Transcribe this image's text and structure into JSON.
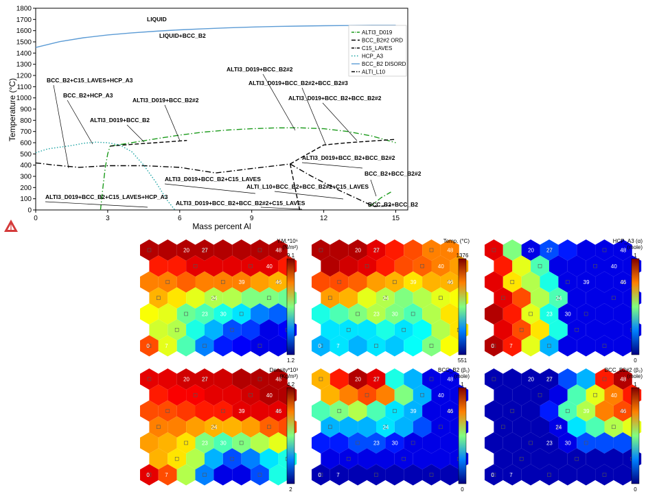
{
  "chart_data": [
    {
      "type": "line",
      "title": "",
      "xlabel": "Mass percent Al",
      "ylabel": "Temperature (°C)",
      "xlim": [
        0,
        15.5
      ],
      "ylim": [
        0,
        1800
      ],
      "x_ticks": [
        "0",
        "3",
        "6",
        "9",
        "12",
        "15"
      ],
      "y_ticks": [
        "0",
        "100",
        "200",
        "300",
        "400",
        "500",
        "600",
        "700",
        "800",
        "900",
        "1000",
        "1100",
        "1200",
        "1300",
        "1400",
        "1500",
        "1600",
        "1700",
        "1800"
      ],
      "legend_position": "top-right",
      "legend": [
        {
          "name": "ALTI3_D019",
          "color": "#1a9a1a",
          "dash": "long-dot"
        },
        {
          "name": "BCC_B2#2 ORD",
          "color": "#000000",
          "dash": "dashed"
        },
        {
          "name": "C15_LAVES",
          "color": "#000000",
          "dash": "long-dot"
        },
        {
          "name": "HCP_A3",
          "color": "#1aa3a3",
          "dash": "dotted"
        },
        {
          "name": "BCC_B2 DISORD",
          "color": "#5b9bd5",
          "dash": "solid"
        },
        {
          "name": "ALTI_L10",
          "color": "#000000",
          "dash": "dash-dot"
        }
      ],
      "series": [
        {
          "name": "BCC_B2 DISORD",
          "color": "#5b9bd5",
          "x": [
            0,
            1,
            2,
            3,
            4,
            5,
            6,
            7,
            8,
            9,
            10,
            11,
            12,
            13,
            14,
            15
          ],
          "y": [
            1450,
            1502,
            1537,
            1562,
            1580,
            1595,
            1607,
            1617,
            1625,
            1632,
            1637,
            1641,
            1644,
            1646,
            1648,
            1648
          ]
        },
        {
          "name": "ALTI3_D019",
          "color": "#1a9a1a",
          "x": [
            3.1,
            4,
            5,
            6,
            7,
            8,
            9,
            10,
            11,
            12,
            13,
            14,
            15
          ],
          "y": [
            570,
            600,
            635,
            668,
            695,
            713,
            725,
            732,
            733,
            725,
            700,
            660,
            600
          ]
        },
        {
          "name": "ALTI3_D019",
          "color": "#1a9a1a",
          "x": [
            2.7,
            2.8,
            2.9,
            3.0,
            3.1
          ],
          "y": [
            0,
            200,
            380,
            500,
            570
          ]
        },
        {
          "name": "ALTI3_D019",
          "color": "#1a9a1a",
          "x": [
            13.9,
            14.1,
            14.4,
            14.8
          ],
          "y": [
            30,
            60,
            110,
            160
          ]
        },
        {
          "name": "BCC_B2#2 ORD",
          "color": "#000000",
          "x": [
            3.1,
            4,
            5,
            6.3
          ],
          "y": [
            570,
            585,
            600,
            620
          ]
        },
        {
          "name": "BCC_B2#2 ORD",
          "color": "#000000",
          "x": [
            10.6,
            11,
            11.5,
            12,
            13,
            14,
            15
          ],
          "y": [
            410,
            460,
            520,
            580,
            600,
            615,
            630
          ]
        },
        {
          "name": "BCC_B2#2 ORD",
          "color": "#000000",
          "x": [
            10.6,
            10.8,
            11.0
          ],
          "y": [
            410,
            200,
            0
          ]
        },
        {
          "name": "C15_LAVES",
          "color": "#000000",
          "x": [
            0,
            0.8,
            1.8,
            3,
            4.5,
            6,
            7.5,
            9,
            10.6
          ],
          "y": [
            420,
            400,
            380,
            395,
            395,
            380,
            330,
            370,
            410
          ]
        },
        {
          "name": "C15_LAVES",
          "color": "#000000",
          "x": [
            10.6,
            11.5,
            12.5,
            13.5,
            14.1
          ],
          "y": [
            410,
            300,
            190,
            90,
            30
          ]
        },
        {
          "name": "HCP_A3",
          "color": "#1aa3a3",
          "x": [
            0,
            0.5,
            1,
            1.5,
            2,
            2.5,
            3,
            3.5,
            4,
            4.5,
            5,
            5.5,
            5.8
          ],
          "y": [
            510,
            545,
            560,
            575,
            595,
            605,
            600,
            580,
            520,
            400,
            250,
            80,
            0
          ]
        },
        {
          "name": "ALTI_L10",
          "color": "#000000",
          "x": [
            14.1,
            14.4,
            14.8
          ],
          "y": [
            30,
            35,
            40
          ]
        }
      ],
      "annotations": [
        "LIQUID",
        "LIQUID+BCC_B2",
        "ALTI3_D019+BCC_B2#2",
        "ALTI3_D019+BCC_B2#2+BCC_B2#3",
        "BCC_B2+C15_LAVES+HCP_A3",
        "BCC_B2+HCP_A3",
        "ALTI3_D019+BCC_B2#2",
        "ALTI3_D019+BCC_B2+BCC_B2#2",
        "ALTI3_D019+BCC_B2",
        "ALTI3_D019+BCC_B2+BCC_B2#2",
        "BCC_B2+BCC_B2#2",
        "ALTI3_D019+BCC_B2+C15_LAVES",
        "ALTI_L10+BCC_B2+BCC_B2#2+C15_LAVES",
        "ALTI3_D019+BCC_B2+C15_LAVES+HCP_A3",
        "ALTI3_D019+BCC_B2+BCC_B2#2+C15_LAVES",
        "BCC_B2+BCC_B2"
      ]
    },
    {
      "type": "heatmap",
      "title": "Y.M.*10⁶\n(N/m²)",
      "colorbar": [
        "9.1",
        "1.2"
      ],
      "values": [
        [
          0.95,
          0.95,
          0.95,
          0.95,
          0.95,
          0.95,
          0.95,
          0.95
        ],
        [
          0.85,
          0.85,
          0.9,
          0.9,
          0.9,
          0.9,
          0.9,
          0.85
        ],
        [
          0.75,
          0.75,
          0.78,
          0.75,
          0.75,
          0.75,
          0.72,
          0.7
        ],
        [
          0.7,
          0.65,
          0.6,
          0.55,
          0.55,
          0.5,
          0.5,
          0.48
        ],
        [
          0.62,
          0.6,
          0.48,
          0.45,
          0.4,
          0.35,
          0.25,
          0.22
        ],
        [
          0.58,
          0.55,
          0.4,
          0.3,
          0.2,
          0.18,
          0.1,
          0.12
        ],
        [
          0.8,
          0.6,
          0.45,
          0.25,
          0.15,
          0.12,
          0.1,
          0.1
        ]
      ],
      "labels": [
        "20",
        "27",
        "48",
        "40",
        "39",
        "46",
        "24",
        "23",
        "30",
        "0",
        "7"
      ]
    },
    {
      "type": "heatmap",
      "title": "Temp. (°C)",
      "colorbar": [
        "1376",
        "551"
      ],
      "values": [
        [
          0.95,
          0.95,
          0.95,
          0.9,
          0.85,
          0.8,
          0.75,
          0.75
        ],
        [
          0.95,
          0.92,
          0.9,
          0.85,
          0.8,
          0.78,
          0.75,
          0.72
        ],
        [
          0.8,
          0.8,
          0.78,
          0.72,
          0.7,
          0.65,
          0.7,
          0.7
        ],
        [
          0.72,
          0.7,
          0.6,
          0.55,
          0.5,
          0.55,
          0.6,
          0.62
        ],
        [
          0.4,
          0.45,
          0.5,
          0.55,
          0.5,
          0.45,
          0.55,
          0.65
        ],
        [
          0.35,
          0.35,
          0.35,
          0.4,
          0.35,
          0.38,
          0.55,
          0.65
        ],
        [
          0.3,
          0.35,
          0.3,
          0.35,
          0.32,
          0.38,
          0.5,
          0.62
        ]
      ],
      "labels": [
        "20",
        "27",
        "48",
        "40",
        "39",
        "46",
        "24",
        "23",
        "30",
        "0",
        "7"
      ]
    },
    {
      "type": "heatmap",
      "title": "HCP_A3 (α)\n(mole)",
      "colorbar": [
        "1",
        "0"
      ],
      "values": [
        [
          0.9,
          0.5,
          0.1,
          0.2,
          0.15,
          0.1,
          0.1,
          0.1
        ],
        [
          0.85,
          0.6,
          0.45,
          0.1,
          0.1,
          0.1,
          0.1,
          0.1
        ],
        [
          0.9,
          0.65,
          0.55,
          0.4,
          0.1,
          0.1,
          0.1,
          0.1
        ],
        [
          0.9,
          0.8,
          0.55,
          0.45,
          0.1,
          0.1,
          0.1,
          0.1
        ],
        [
          0.95,
          0.85,
          0.6,
          0.4,
          0.1,
          0.1,
          0.1,
          0.1
        ],
        [
          0.9,
          0.8,
          0.65,
          0.4,
          0.1,
          0.1,
          0.1,
          0.1
        ],
        [
          0.95,
          0.85,
          0.6,
          0.3,
          0.1,
          0.1,
          0.1,
          0.1
        ]
      ],
      "labels": [
        "20",
        "27",
        "48",
        "40",
        "39",
        "46",
        "24",
        "23",
        "30",
        "0",
        "7"
      ]
    },
    {
      "type": "heatmap",
      "title": "Density*10³\n(Kg/m³)",
      "colorbar": [
        "4.2",
        "2"
      ],
      "values": [
        [
          0.9,
          0.9,
          0.92,
          0.92,
          0.92,
          0.95,
          0.95,
          0.95
        ],
        [
          0.85,
          0.88,
          0.88,
          0.9,
          0.9,
          0.92,
          0.95,
          0.95
        ],
        [
          0.8,
          0.8,
          0.82,
          0.85,
          0.85,
          0.9,
          0.9,
          0.9
        ],
        [
          0.75,
          0.75,
          0.72,
          0.7,
          0.7,
          0.72,
          0.78,
          0.8
        ],
        [
          0.72,
          0.7,
          0.65,
          0.5,
          0.45,
          0.5,
          0.55,
          0.6
        ],
        [
          0.7,
          0.65,
          0.55,
          0.3,
          0.2,
          0.25,
          0.35,
          0.4
        ],
        [
          0.9,
          0.8,
          0.55,
          0.25,
          0.1,
          0.1,
          0.2,
          0.4
        ]
      ],
      "labels": [
        "20",
        "27",
        "48",
        "40",
        "39",
        "46",
        "24",
        "23",
        "30",
        "0",
        "7"
      ]
    },
    {
      "type": "heatmap",
      "title": "BCC_B2 (β₁)\n(mole)",
      "colorbar": [
        "1",
        "0"
      ],
      "values": [
        [
          0.7,
          0.85,
          0.95,
          0.9,
          0.4,
          0.3,
          0.1,
          0.1
        ],
        [
          0.7,
          0.75,
          0.8,
          0.75,
          0.5,
          0.3,
          0.1,
          0.1
        ],
        [
          0.45,
          0.5,
          0.55,
          0.45,
          0.35,
          0.3,
          0.1,
          0.1
        ],
        [
          0.3,
          0.3,
          0.3,
          0.35,
          0.3,
          0.2,
          0.1,
          0.1
        ],
        [
          0.15,
          0.15,
          0.2,
          0.2,
          0.15,
          0.1,
          0.1,
          0.1
        ],
        [
          0.1,
          0.1,
          0.1,
          0.1,
          0.1,
          0.1,
          0.1,
          0.1
        ],
        [
          0.05,
          0.05,
          0.05,
          0.05,
          0.05,
          0.05,
          0.05,
          0.05
        ]
      ],
      "labels": [
        "20",
        "27",
        "48",
        "40",
        "39",
        "46",
        "24",
        "23",
        "30",
        "0",
        "7"
      ]
    },
    {
      "type": "heatmap",
      "title": "BCC_B2#2 (β₂)\n(mole)",
      "colorbar": [
        "1",
        "0"
      ],
      "values": [
        [
          0.05,
          0.05,
          0.05,
          0.05,
          0.2,
          0.3,
          0.85,
          0.95
        ],
        [
          0.05,
          0.05,
          0.05,
          0.1,
          0.45,
          0.6,
          0.75,
          0.85
        ],
        [
          0.05,
          0.05,
          0.05,
          0.15,
          0.45,
          0.55,
          0.75,
          0.8
        ],
        [
          0.05,
          0.05,
          0.05,
          0.1,
          0.35,
          0.45,
          0.55,
          0.6
        ],
        [
          0.05,
          0.05,
          0.05,
          0.05,
          0.1,
          0.2,
          0.2,
          0.2
        ],
        [
          0.05,
          0.05,
          0.05,
          0.05,
          0.05,
          0.05,
          0.05,
          0.05
        ],
        [
          0.05,
          0.05,
          0.05,
          0.05,
          0.05,
          0.05,
          0.05,
          0.05
        ]
      ],
      "labels": [
        "20",
        "27",
        "48",
        "40",
        "39",
        "46",
        "24",
        "23",
        "30",
        "0",
        "7"
      ]
    }
  ],
  "icon": "thermocalc-logo-icon"
}
